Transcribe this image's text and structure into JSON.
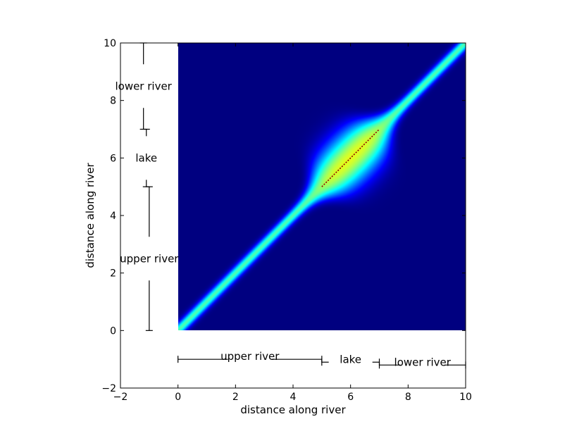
{
  "chart_data": {
    "type": "heatmap",
    "title": "",
    "xlabel": "distance along river",
    "ylabel": "distance along river",
    "xlim": [
      -2,
      10
    ],
    "ylim": [
      -2,
      10
    ],
    "x_ticks": [
      -2,
      0,
      2,
      4,
      6,
      8,
      10
    ],
    "y_ticks": [
      -2,
      0,
      2,
      4,
      6,
      8,
      10
    ],
    "x_tick_labels": [
      "−2",
      "0",
      "2",
      "4",
      "6",
      "8",
      "10"
    ],
    "y_tick_labels": [
      "−2",
      "0",
      "2",
      "4",
      "6",
      "8",
      "10"
    ],
    "grid": false,
    "colormap": "jet",
    "heatmap_extent": {
      "x": [
        0,
        10
      ],
      "y": [
        0,
        10
      ]
    },
    "heatmap_model": {
      "description_values": "correlation concentrated along diagonal x=y; band widens in lake region",
      "lake_x": [
        5,
        7
      ],
      "lake_center": 6,
      "river_band_sigma": 0.18,
      "lake_band_sigma": 0.85,
      "lake_edge_softness": 0.22,
      "peak_lake_value": 0.6,
      "diagonal_peak_value": 1.0
    },
    "segments_x": [
      {
        "label": "upper river",
        "range": [
          0,
          5
        ],
        "y": -1.0
      },
      {
        "label": "lake",
        "range": [
          5,
          7
        ],
        "y": -1.1
      },
      {
        "label": "lower river",
        "range": [
          7,
          10
        ],
        "y": -1.2
      }
    ],
    "segments_y": [
      {
        "label": "upper river",
        "range": [
          0,
          5
        ],
        "x": -1.0
      },
      {
        "label": "lake",
        "range": [
          5,
          7
        ],
        "x": -1.1
      },
      {
        "label": "lower river",
        "range": [
          7,
          10
        ],
        "x": -1.2
      }
    ]
  }
}
